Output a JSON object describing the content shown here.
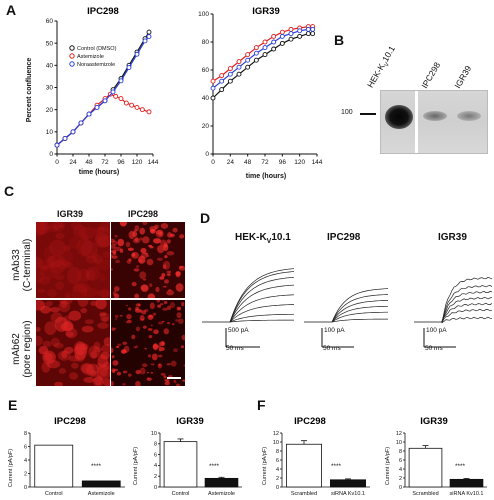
{
  "panel_letters": {
    "A": "A",
    "B": "B",
    "C": "C",
    "D": "D",
    "E": "E",
    "F": "F"
  },
  "panelA": {
    "x_ticks": [
      "0",
      "24",
      "48",
      "72",
      "96",
      "120",
      "144"
    ],
    "xlabel": "time (hours)",
    "ylabel": "Percent confluence",
    "colors": {
      "control": "#111111",
      "astemizole": "#e02020",
      "noraastemizole": "#2a3fd6"
    }
  },
  "panelB": {
    "lane_labels": [
      "HEK-K",
      "V",
      "10.1",
      "IPC298",
      "IGR39"
    ],
    "marker": "100"
  },
  "panelC": {
    "col_labels": [
      "IGR39",
      "IPC298"
    ],
    "row_labels": [
      [
        "mAb33",
        "(C-terminal)"
      ],
      [
        "mAb62",
        "(pore region)"
      ]
    ]
  },
  "panelD": {
    "titles": [
      "HEK-K",
      "V",
      "10.1",
      "IPC298",
      "IGR39"
    ],
    "scale_current": [
      "500 pA",
      "100 pA",
      "100 pA"
    ],
    "scale_time": [
      "50 ms",
      "50 ms",
      "50 ms"
    ]
  },
  "panelE": {
    "ylabel": "Current (pA/pF)",
    "stars": "****"
  },
  "panelF": {
    "ylabel": "Current (pA/pF)",
    "stars": "****"
  },
  "chart_data": [
    {
      "type": "line",
      "title": "IPC298",
      "xlabel": "time (hours)",
      "ylabel": "Percent confluence",
      "xlim": [
        0,
        144
      ],
      "ylim": [
        0,
        60
      ],
      "y_ticks": [
        "0",
        "10",
        "20",
        "30",
        "40",
        "50",
        "60"
      ],
      "legend": "top-left",
      "series": [
        {
          "name": "Control (DMSO)",
          "x": [
            0,
            12,
            24,
            36,
            48,
            60,
            72,
            84,
            96,
            108,
            120,
            132,
            138
          ],
          "y": [
            4,
            7,
            10,
            14,
            18,
            21,
            24,
            29,
            34,
            40,
            46,
            52,
            55
          ]
        },
        {
          "name": "Astemizole",
          "x": [
            0,
            12,
            24,
            36,
            48,
            60,
            72,
            80,
            88,
            96,
            104,
            112,
            120,
            128,
            138
          ],
          "y": [
            4,
            7,
            10,
            14,
            18,
            22,
            25,
            27,
            26,
            25,
            23,
            22,
            21,
            20,
            19
          ]
        },
        {
          "name": "Noraastemizole",
          "x": [
            0,
            12,
            24,
            36,
            48,
            60,
            72,
            84,
            96,
            108,
            120,
            132,
            138
          ],
          "y": [
            4,
            7,
            10,
            14,
            18,
            21,
            24,
            28,
            33,
            39,
            45,
            51,
            53
          ]
        }
      ]
    },
    {
      "type": "line",
      "title": "IGR39",
      "xlabel": "time (hours)",
      "xlim": [
        0,
        144
      ],
      "ylim": [
        0,
        100
      ],
      "y_ticks": [
        "0",
        "20",
        "40",
        "60",
        "80",
        "100"
      ],
      "series": [
        {
          "name": "Control (DMSO)",
          "x": [
            0,
            12,
            24,
            36,
            48,
            60,
            72,
            84,
            96,
            108,
            120,
            132,
            138
          ],
          "y": [
            40,
            46,
            52,
            57,
            62,
            67,
            71,
            75,
            79,
            82,
            84,
            86,
            86
          ]
        },
        {
          "name": "Astemizole",
          "x": [
            0,
            12,
            24,
            36,
            48,
            60,
            72,
            84,
            96,
            108,
            120,
            132,
            138
          ],
          "y": [
            52,
            56,
            61,
            66,
            71,
            76,
            80,
            84,
            87,
            89,
            90,
            91,
            91
          ]
        },
        {
          "name": "Noraastemizole",
          "x": [
            0,
            12,
            24,
            36,
            48,
            60,
            72,
            84,
            96,
            108,
            120,
            132,
            138
          ],
          "y": [
            47,
            52,
            57,
            62,
            67,
            72,
            76,
            80,
            84,
            86,
            88,
            89,
            89
          ]
        }
      ]
    },
    {
      "type": "bar",
      "title": "IPC298",
      "ylabel": "Current (pA/pF)",
      "categories": [
        "Control",
        "Astemizole"
      ],
      "values": [
        6.2,
        0.9
      ],
      "ylim": [
        0,
        8
      ],
      "y_ticks": [
        "0",
        "2",
        "4",
        "6",
        "8"
      ],
      "colors": [
        "#ffffff",
        "#111111"
      ]
    },
    {
      "type": "bar",
      "title": "IGR39",
      "ylabel": "Current (pA/pF)",
      "categories": [
        "Control",
        "Astemizole"
      ],
      "values": [
        8.4,
        1.6
      ],
      "error": [
        0.5,
        0.2
      ],
      "ylim": [
        0,
        10
      ],
      "y_ticks": [
        "0",
        "2",
        "4",
        "6",
        "8",
        "10"
      ],
      "colors": [
        "#ffffff",
        "#111111"
      ]
    },
    {
      "type": "bar",
      "title": "IPC298",
      "ylabel": "Current (pA/pF)",
      "categories": [
        "Scrambled",
        "siRNA Kv10.1"
      ],
      "values": [
        9.5,
        1.6
      ],
      "error": [
        0.8,
        0.2
      ],
      "ylim": [
        0,
        12
      ],
      "y_ticks": [
        "0",
        "2",
        "4",
        "6",
        "8",
        "10",
        "12"
      ],
      "colors": [
        "#ffffff",
        "#111111"
      ]
    },
    {
      "type": "bar",
      "title": "IGR39",
      "ylabel": "Current (pA/pF)",
      "categories": [
        "Scrambled",
        "siRNA Kv10.1"
      ],
      "values": [
        8.6,
        1.7
      ],
      "error": [
        0.6,
        0.2
      ],
      "ylim": [
        0,
        12
      ],
      "y_ticks": [
        "0",
        "2",
        "4",
        "6",
        "8",
        "10",
        "12"
      ],
      "colors": [
        "#ffffff",
        "#111111"
      ]
    }
  ]
}
